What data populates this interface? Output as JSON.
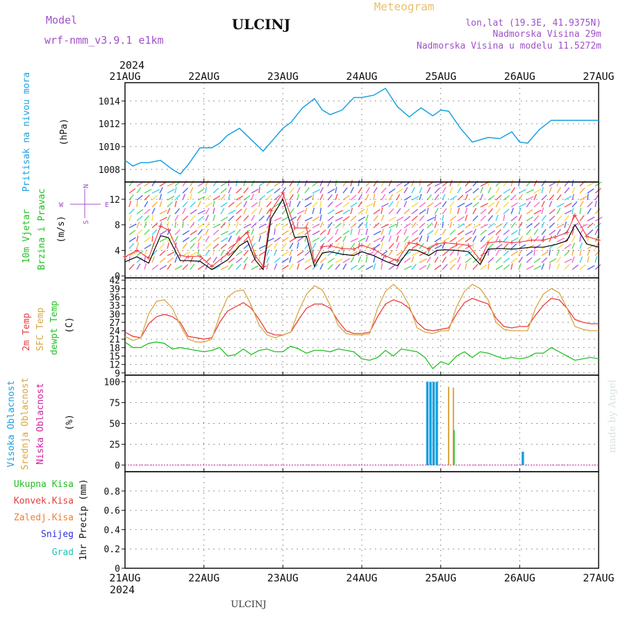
{
  "header": {
    "title": "ULCINJ",
    "meteogram_label": "Meteogram",
    "model_label": "Model",
    "model_name": "wrf-nmm_v3.9.1  e1km",
    "coords": "lon,lat (19.3E, 41.9375N)",
    "altitude": "Nadmorska Visina 29m",
    "model_altitude": "Nadmorska Visina u modelu 11.5272m",
    "year": "2024",
    "credit": "made by Angel",
    "footer": "ULCINJ"
  },
  "x_axis": {
    "ticks": [
      "21AUG",
      "22AUG",
      "23AUG",
      "24AUG",
      "25AUG",
      "26AUG",
      "27AUG"
    ],
    "year": "2024"
  },
  "colors": {
    "pressure": "#1aa0e0",
    "temp2m": "#e83c3c",
    "sfc": "#d9a640",
    "dewpt": "#22c022",
    "high_cloud": "#1aa0e0",
    "mid_cloud": "#d9a640",
    "low_cloud": "#d020a0",
    "wind_speed": "#000000",
    "gust": "#e83c3c"
  },
  "chart_data": [
    {
      "type": "line",
      "name": "pressure",
      "ylabel_lines": [
        "Pritisak na nivou mora"
      ],
      "unit": "(hPa)",
      "ylim": [
        1006.9,
        1015.6
      ],
      "yticks": [
        1008,
        1010,
        1012,
        1014
      ],
      "x_days": [
        0.0,
        0.1,
        0.2,
        0.3,
        0.45,
        0.6,
        0.7,
        0.8,
        0.95,
        1.0,
        1.1,
        1.2,
        1.3,
        1.45,
        1.6,
        1.75,
        1.9,
        2.0,
        2.1,
        2.25,
        2.4,
        2.5,
        2.6,
        2.75,
        2.9,
        3.0,
        3.15,
        3.3,
        3.45,
        3.6,
        3.75,
        3.9,
        4.0,
        4.1,
        4.25,
        4.4,
        4.6,
        4.75,
        4.9,
        5.0,
        5.1,
        5.25,
        5.4,
        5.55,
        5.7,
        5.85,
        6.0
      ],
      "series": [
        {
          "values": [
            1008.8,
            1008.3,
            1008.6,
            1008.6,
            1008.8,
            1008.0,
            1007.6,
            1008.4,
            1009.9,
            1009.9,
            1009.9,
            1010.3,
            1011.0,
            1011.6,
            1010.6,
            1009.6,
            1010.8,
            1011.6,
            1012.1,
            1013.4,
            1014.2,
            1013.2,
            1012.8,
            1013.2,
            1014.3,
            1014.3,
            1014.5,
            1015.1,
            1013.5,
            1012.6,
            1013.4,
            1012.7,
            1013.2,
            1013.1,
            1011.6,
            1010.4,
            1010.8,
            1010.7,
            1011.3,
            1010.4,
            1010.3,
            1011.5,
            1012.3,
            1012.3,
            1012.3,
            1012.3,
            1012.3
          ]
        }
      ]
    },
    {
      "type": "line",
      "name": "wind",
      "ylabel_lines": [
        "10m Vjetar",
        "Brzina i Pravac"
      ],
      "unit": "(m/s)",
      "ylim": [
        -0.3,
        14.7
      ],
      "yticks": [
        0,
        4,
        8,
        12
      ],
      "compass": {
        "n": "N",
        "s": "S",
        "e": "E",
        "w": "W"
      },
      "x_days": [
        0.0,
        0.15,
        0.3,
        0.45,
        0.55,
        0.7,
        0.8,
        0.95,
        1.1,
        1.3,
        1.45,
        1.55,
        1.65,
        1.75,
        1.85,
        2.0,
        2.15,
        2.3,
        2.4,
        2.5,
        2.6,
        2.75,
        2.9,
        3.0,
        3.15,
        3.3,
        3.45,
        3.6,
        3.7,
        3.85,
        3.95,
        4.05,
        4.2,
        4.35,
        4.5,
        4.6,
        4.75,
        4.9,
        5.0,
        5.15,
        5.3,
        5.45,
        5.6,
        5.7,
        5.85,
        6.0
      ],
      "series": [
        {
          "values": [
            2.2,
            3.0,
            2.0,
            6.3,
            6.0,
            2.4,
            2.4,
            2.3,
            1.0,
            2.5,
            4.7,
            5.5,
            2.5,
            1.0,
            9.0,
            12.0,
            6.0,
            6.2,
            1.5,
            3.6,
            3.8,
            3.4,
            3.2,
            3.8,
            3.2,
            2.3,
            1.6,
            4.1,
            4.0,
            3.2,
            4.0,
            4.1,
            4.0,
            3.8,
            1.8,
            4.2,
            4.3,
            4.2,
            4.3,
            4.5,
            4.5,
            4.9,
            5.5,
            8.0,
            5.0,
            4.5
          ]
        },
        {
          "values": [
            3.0,
            4.0,
            2.8,
            7.8,
            7.2,
            3.2,
            3.0,
            3.1,
            1.5,
            3.5,
            5.8,
            6.8,
            3.2,
            1.5,
            10.2,
            13.0,
            7.5,
            7.5,
            2.3,
            4.6,
            4.7,
            4.3,
            4.2,
            4.8,
            4.2,
            3.1,
            2.4,
            5.2,
            5.0,
            4.2,
            5.0,
            5.2,
            5.0,
            4.8,
            2.5,
            5.2,
            5.4,
            5.2,
            5.3,
            5.6,
            5.6,
            6.1,
            6.8,
            9.5,
            6.2,
            5.6
          ]
        }
      ]
    },
    {
      "type": "line",
      "name": "temperature",
      "ylabel_lines": [
        "2m Temp",
        "SFC Temp",
        "dewpt Temp"
      ],
      "unit": "(C)",
      "ylim": [
        8.2,
        42.8
      ],
      "yticks": [
        9,
        12,
        15,
        18,
        21,
        24,
        27,
        30,
        33,
        36,
        39,
        42
      ],
      "x_days": [
        0.0,
        0.1,
        0.2,
        0.3,
        0.4,
        0.5,
        0.6,
        0.7,
        0.8,
        0.9,
        1.0,
        1.1,
        1.2,
        1.3,
        1.4,
        1.5,
        1.6,
        1.7,
        1.8,
        1.9,
        2.0,
        2.1,
        2.2,
        2.3,
        2.4,
        2.5,
        2.6,
        2.7,
        2.8,
        2.9,
        3.0,
        3.1,
        3.2,
        3.3,
        3.4,
        3.5,
        3.6,
        3.7,
        3.8,
        3.9,
        4.0,
        4.1,
        4.2,
        4.3,
        4.4,
        4.5,
        4.6,
        4.7,
        4.8,
        4.9,
        5.0,
        5.1,
        5.2,
        5.3,
        5.4,
        5.5,
        5.6,
        5.7,
        5.8,
        5.9,
        6.0
      ],
      "series": [
        {
          "name": "2m Temp",
          "values": [
            23.5,
            22.0,
            21.5,
            26.5,
            29.0,
            29.8,
            29.0,
            27.0,
            22.0,
            21.5,
            21.0,
            21.5,
            27.0,
            31.0,
            32.5,
            34.0,
            32.0,
            28.0,
            23.5,
            22.5,
            22.5,
            23.5,
            28.0,
            32.0,
            33.5,
            33.5,
            32.0,
            27.5,
            24.0,
            23.0,
            23.0,
            23.5,
            29.0,
            33.5,
            35.0,
            34.0,
            32.0,
            27.0,
            24.5,
            24.0,
            24.5,
            25.0,
            30.0,
            34.0,
            35.5,
            34.5,
            33.5,
            28.5,
            25.5,
            25.0,
            25.5,
            25.5,
            29.5,
            33.0,
            35.5,
            35.0,
            32.0,
            28.0,
            27.0,
            26.5,
            26.5
          ]
        },
        {
          "name": "SFC Temp",
          "values": [
            22.0,
            20.5,
            21.5,
            30.0,
            34.5,
            35.0,
            32.0,
            26.0,
            21.0,
            20.0,
            20.0,
            21.0,
            29.5,
            36.0,
            38.0,
            38.5,
            33.0,
            26.0,
            22.5,
            21.5,
            22.5,
            23.5,
            31.0,
            37.0,
            40.0,
            38.5,
            33.0,
            26.0,
            23.0,
            22.5,
            22.5,
            23.0,
            32.0,
            38.0,
            40.5,
            38.0,
            33.0,
            25.0,
            23.5,
            23.0,
            24.0,
            24.0,
            32.5,
            38.0,
            40.5,
            39.0,
            35.0,
            27.0,
            24.5,
            24.0,
            24.0,
            24.0,
            32.0,
            37.0,
            39.0,
            37.5,
            32.0,
            25.5,
            24.5,
            24.0,
            24.0
          ]
        },
        {
          "name": "dewpt Temp",
          "values": [
            20.0,
            18.0,
            18.0,
            19.5,
            20.0,
            19.5,
            17.5,
            18.0,
            17.5,
            17.0,
            16.5,
            17.0,
            18.0,
            15.0,
            15.5,
            17.5,
            15.5,
            17.0,
            17.5,
            16.5,
            16.5,
            18.5,
            17.5,
            16.0,
            17.0,
            17.0,
            16.5,
            17.5,
            17.0,
            16.5,
            14.0,
            13.5,
            14.5,
            17.0,
            15.0,
            17.5,
            17.0,
            16.5,
            14.5,
            10.5,
            13.0,
            12.0,
            15.0,
            16.5,
            14.5,
            16.5,
            16.0,
            15.0,
            14.0,
            14.5,
            14.0,
            14.5,
            16.0,
            16.0,
            18.0,
            16.5,
            15.0,
            13.5,
            14.0,
            14.5,
            14.0
          ]
        }
      ]
    },
    {
      "type": "bar",
      "name": "clouds",
      "ylabel_lines": [
        "Visoka Oblacnost",
        "Srednja Oblacnost",
        "Niska Oblacnost"
      ],
      "unit": "(%)",
      "ylim": [
        -8,
        108
      ],
      "yticks": [
        0,
        25,
        50,
        75,
        100
      ],
      "series": [
        {
          "name": "Visoka Oblacnost",
          "x_days": [
            3.83,
            3.87,
            3.91,
            3.95,
            5.04
          ],
          "values": [
            100,
            100,
            100,
            100,
            16
          ]
        },
        {
          "name": "Srednja Oblacnost",
          "x_days": [
            4.1,
            4.16
          ],
          "values": [
            94,
            93
          ]
        },
        {
          "name": "Niska Oblacnost",
          "x_days": [
            4.17
          ],
          "values": [
            42
          ]
        }
      ]
    },
    {
      "type": "bar",
      "name": "precip",
      "legend": [
        "Ukupna Kisa",
        "Konvek.Kisa",
        "Zaledj.Kisa",
        "Snijeg",
        "Grad"
      ],
      "ylabel_lines": [
        "1hr Precip (mm)"
      ],
      "ylim": [
        0,
        1.0
      ],
      "yticks": [
        "0",
        "0.2",
        "0.4",
        "0.6",
        "0.8"
      ],
      "values": []
    }
  ]
}
